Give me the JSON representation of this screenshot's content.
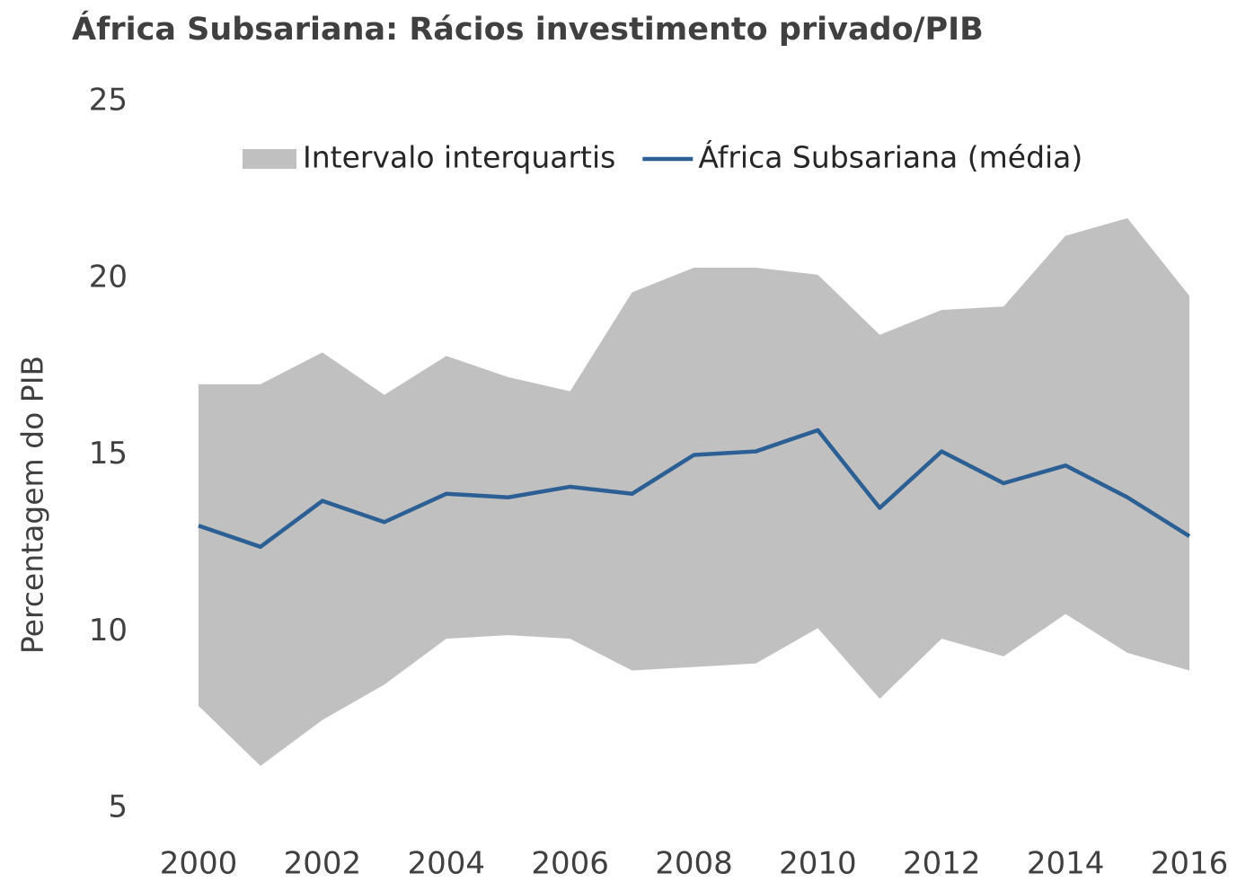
{
  "chart_data": {
    "type": "line",
    "title": "África Subsariana: Rácios investimento privado/PIB",
    "ylabel": "Percentagem do PIB",
    "x": [
      2000,
      2001,
      2002,
      2003,
      2004,
      2005,
      2006,
      2007,
      2008,
      2009,
      2010,
      2011,
      2012,
      2013,
      2014,
      2015,
      2016
    ],
    "xlim": [
      2000,
      2016
    ],
    "xticks": [
      2000,
      2002,
      2004,
      2006,
      2008,
      2010,
      2012,
      2014,
      2016
    ],
    "ylim": [
      5,
      25
    ],
    "yticks": [
      5,
      10,
      15,
      20,
      25
    ],
    "grid": false,
    "legend": "top",
    "series": [
      {
        "name": "Intervalo interquartis",
        "color": "#c0c0c0",
        "type": "range",
        "low": [
          7.9,
          6.2,
          7.5,
          8.5,
          9.8,
          9.9,
          9.8,
          8.9,
          9.0,
          9.1,
          10.1,
          8.1,
          9.8,
          9.3,
          10.5,
          9.4,
          8.9
        ],
        "high": [
          17.0,
          17.0,
          17.9,
          16.7,
          17.8,
          17.2,
          16.8,
          19.6,
          20.3,
          20.3,
          20.1,
          18.4,
          19.1,
          19.2,
          21.2,
          21.7,
          19.5
        ]
      },
      {
        "name": "África Subsariana (média)",
        "color": "#2c5f94",
        "type": "line",
        "values": [
          13.0,
          12.4,
          13.7,
          13.1,
          13.9,
          13.8,
          14.1,
          13.9,
          15.0,
          15.1,
          15.7,
          13.5,
          15.1,
          14.2,
          14.7,
          13.8,
          12.7
        ]
      }
    ]
  }
}
